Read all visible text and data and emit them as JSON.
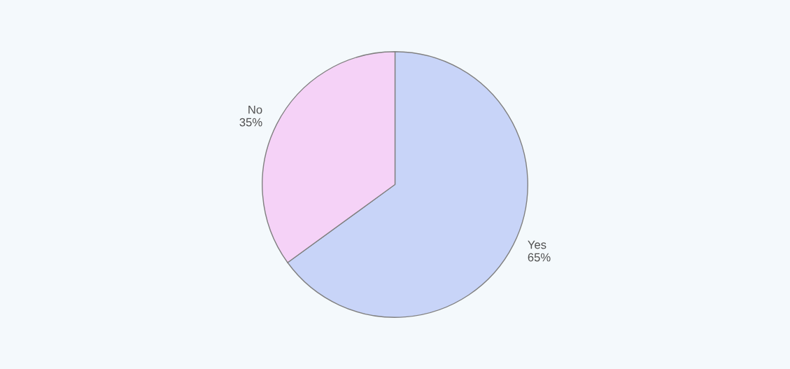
{
  "chart_data": {
    "type": "pie",
    "categories": [
      "Yes",
      "No"
    ],
    "values": [
      65,
      35
    ],
    "colors": [
      "#c8d4f8",
      "#f5d2f7"
    ],
    "value_labels": [
      "65%",
      "35%"
    ]
  }
}
